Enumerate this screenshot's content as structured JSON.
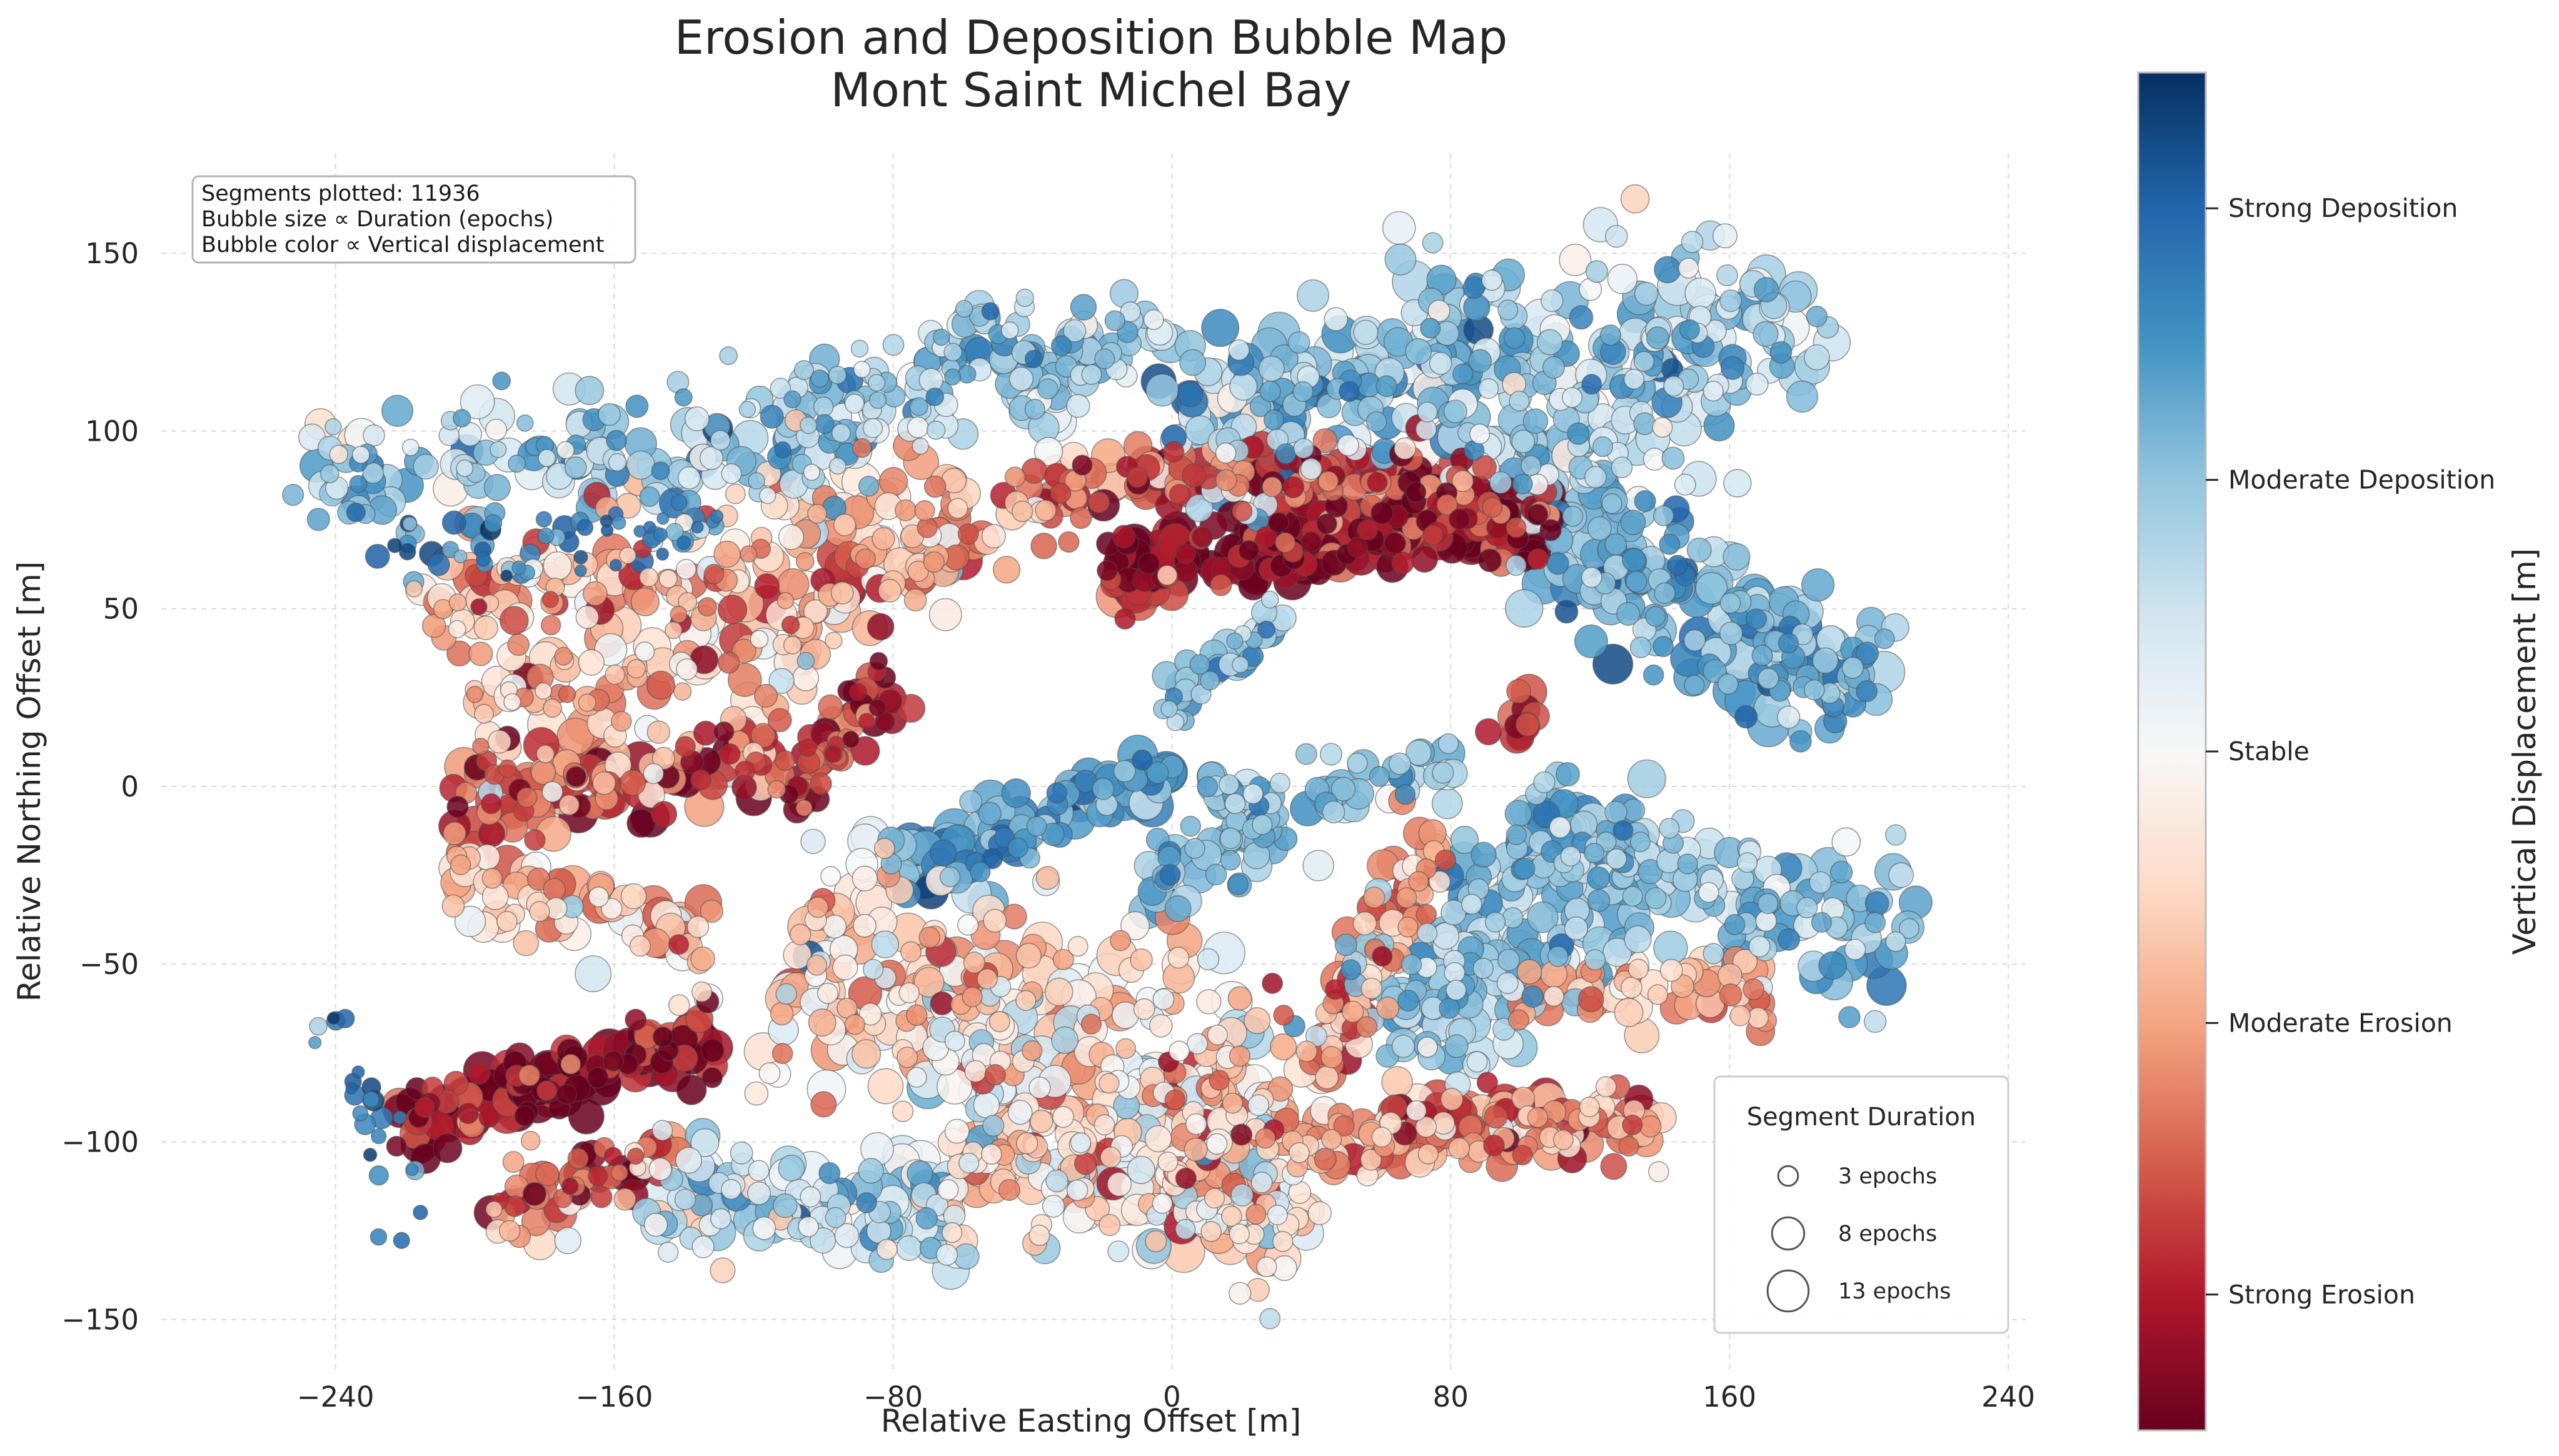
{
  "chart_data": {
    "type": "scatter",
    "title": [
      "Erosion and Deposition Bubble Map",
      "Mont Saint Michel Bay"
    ],
    "xlabel": "Relative Easting Offset [m]",
    "ylabel": "Relative Northing Offset [m]",
    "xlim": [
      -290,
      245
    ],
    "ylim": [
      -165,
      178
    ],
    "xticks": [
      -240,
      -160,
      -80,
      0,
      80,
      160,
      240
    ],
    "xtick_labels": [
      "−240",
      "−160",
      "−80",
      "0",
      "80",
      "160",
      "240"
    ],
    "yticks": [
      -150,
      -100,
      -50,
      0,
      50,
      100,
      150
    ],
    "ytick_labels": [
      "−150",
      "−100",
      "−50",
      "0",
      "50",
      "100",
      "150"
    ],
    "grid": true,
    "info_box": [
      "Segments plotted: 11936",
      "Bubble size ∝ Duration (epochs)",
      "Bubble color ∝ Vertical displacement"
    ],
    "legend": {
      "title": "Segment Duration",
      "placement": "lower-right",
      "items": [
        {
          "label": "3 epochs",
          "epochs": 3
        },
        {
          "label": "8 epochs",
          "epochs": 8
        },
        {
          "label": "13 epochs",
          "epochs": 13
        }
      ]
    },
    "colorbar": {
      "label": "Vertical Displacement [m]",
      "colormap": [
        "#67001f",
        "#b2182b",
        "#d6604d",
        "#f4a582",
        "#fddbc7",
        "#f7f7f7",
        "#d1e5f0",
        "#92c5de",
        "#4393c3",
        "#2166ac",
        "#053061"
      ],
      "ticks": [
        {
          "label": "Strong Deposition",
          "level": 0.9
        },
        {
          "label": "Moderate Deposition",
          "level": 0.7
        },
        {
          "label": "Stable",
          "level": 0.5
        },
        {
          "label": "Moderate Erosion",
          "level": 0.3
        },
        {
          "label": "Strong Erosion",
          "level": 0.1
        }
      ]
    },
    "clusters": [
      {
        "x0": -250,
        "y0": 90,
        "x1": -100,
        "y1": 95,
        "width": 18,
        "n": 140,
        "level": 0.67,
        "spread": 0.12,
        "epochs": [
          2,
          10
        ]
      },
      {
        "x0": -110,
        "y0": 98,
        "x1": -40,
        "y1": 125,
        "width": 16,
        "n": 120,
        "level": 0.68,
        "spread": 0.1,
        "epochs": [
          2,
          10
        ]
      },
      {
        "x0": -45,
        "y0": 108,
        "x1": -5,
        "y1": 135,
        "width": 12,
        "n": 60,
        "level": 0.66,
        "spread": 0.1,
        "epochs": [
          3,
          12
        ]
      },
      {
        "x0": -230,
        "y0": 65,
        "x1": -130,
        "y1": 72,
        "width": 8,
        "n": 60,
        "level": 0.85,
        "spread": 0.08,
        "epochs": [
          1,
          5
        ]
      },
      {
        "x0": -215,
        "y0": 50,
        "x1": -60,
        "y1": 80,
        "width": 20,
        "n": 150,
        "level": 0.34,
        "spread": 0.12,
        "epochs": [
          2,
          12
        ]
      },
      {
        "x0": -200,
        "y0": 20,
        "x1": -100,
        "y1": 45,
        "width": 18,
        "n": 110,
        "level": 0.32,
        "spread": 0.12,
        "epochs": [
          2,
          12
        ]
      },
      {
        "x0": -100,
        "y0": 55,
        "x1": -20,
        "y1": 85,
        "width": 12,
        "n": 90,
        "level": 0.28,
        "spread": 0.14,
        "epochs": [
          3,
          12
        ]
      },
      {
        "x0": -20,
        "y0": 60,
        "x1": 110,
        "y1": 78,
        "width": 10,
        "n": 260,
        "level": 0.06,
        "spread": 0.1,
        "epochs": [
          3,
          14
        ]
      },
      {
        "x0": -20,
        "y0": 85,
        "x1": 90,
        "y1": 88,
        "width": 8,
        "n": 120,
        "level": 0.2,
        "spread": 0.12,
        "epochs": [
          3,
          12
        ]
      },
      {
        "x0": 0,
        "y0": 95,
        "x1": 100,
        "y1": 130,
        "width": 25,
        "n": 190,
        "level": 0.7,
        "spread": 0.1,
        "epochs": [
          3,
          14
        ]
      },
      {
        "x0": 80,
        "y0": 90,
        "x1": 180,
        "y1": 140,
        "width": 30,
        "n": 220,
        "level": 0.67,
        "spread": 0.1,
        "epochs": [
          3,
          14
        ]
      },
      {
        "x0": 110,
        "y0": 70,
        "x1": 200,
        "y1": 25,
        "width": 22,
        "n": 200,
        "level": 0.75,
        "spread": 0.08,
        "epochs": [
          3,
          14
        ]
      },
      {
        "x0": -205,
        "y0": -5,
        "x1": -110,
        "y1": 10,
        "width": 10,
        "n": 120,
        "level": 0.2,
        "spread": 0.14,
        "epochs": [
          3,
          12
        ]
      },
      {
        "x0": -110,
        "y0": -5,
        "x1": -80,
        "y1": 30,
        "width": 8,
        "n": 60,
        "level": 0.1,
        "spread": 0.1,
        "epochs": [
          2,
          8
        ]
      },
      {
        "x0": -210,
        "y0": -25,
        "x1": -130,
        "y1": -45,
        "width": 14,
        "n": 80,
        "level": 0.33,
        "spread": 0.12,
        "epochs": [
          3,
          12
        ]
      },
      {
        "x0": -80,
        "y0": -25,
        "x1": 0,
        "y1": 5,
        "width": 8,
        "n": 100,
        "level": 0.78,
        "spread": 0.08,
        "epochs": [
          3,
          14
        ]
      },
      {
        "x0": 0,
        "y0": 20,
        "x1": 30,
        "y1": 50,
        "width": 5,
        "n": 40,
        "level": 0.72,
        "spread": 0.08,
        "epochs": [
          2,
          8
        ]
      },
      {
        "x0": -10,
        "y0": -30,
        "x1": 30,
        "y1": -10,
        "width": 10,
        "n": 50,
        "level": 0.73,
        "spread": 0.08,
        "epochs": [
          3,
          12
        ]
      },
      {
        "x0": 10,
        "y0": -5,
        "x1": 80,
        "y1": 5,
        "width": 10,
        "n": 60,
        "level": 0.7,
        "spread": 0.08,
        "epochs": [
          3,
          10
        ]
      },
      {
        "x0": 40,
        "y0": -80,
        "x1": 80,
        "y1": -10,
        "width": 8,
        "n": 90,
        "level": 0.28,
        "spread": 0.12,
        "epochs": [
          3,
          12
        ]
      },
      {
        "x0": 60,
        "y0": -70,
        "x1": 130,
        "y1": -20,
        "width": 25,
        "n": 200,
        "level": 0.69,
        "spread": 0.08,
        "epochs": [
          3,
          12
        ]
      },
      {
        "x0": 100,
        "y0": -10,
        "x1": 210,
        "y1": -45,
        "width": 18,
        "n": 160,
        "level": 0.7,
        "spread": 0.08,
        "epochs": [
          3,
          12
        ]
      },
      {
        "x0": 100,
        "y0": -60,
        "x1": 170,
        "y1": -55,
        "width": 10,
        "n": 60,
        "level": 0.33,
        "spread": 0.08,
        "epochs": [
          3,
          10
        ]
      },
      {
        "x0": -225,
        "y0": -95,
        "x1": -130,
        "y1": -70,
        "width": 10,
        "n": 140,
        "level": 0.04,
        "spread": 0.1,
        "epochs": [
          3,
          14
        ]
      },
      {
        "x0": -195,
        "y0": -120,
        "x1": -140,
        "y1": -105,
        "width": 10,
        "n": 60,
        "level": 0.22,
        "spread": 0.14,
        "epochs": [
          2,
          10
        ]
      },
      {
        "x0": -150,
        "y0": -115,
        "x1": -60,
        "y1": -120,
        "width": 14,
        "n": 150,
        "level": 0.62,
        "spread": 0.12,
        "epochs": [
          3,
          12
        ]
      },
      {
        "x0": -110,
        "y0": -50,
        "x1": 30,
        "y1": -90,
        "width": 35,
        "n": 380,
        "level": 0.41,
        "spread": 0.14,
        "epochs": [
          3,
          14
        ]
      },
      {
        "x0": -60,
        "y0": -100,
        "x1": 40,
        "y1": -125,
        "width": 18,
        "n": 200,
        "level": 0.43,
        "spread": 0.12,
        "epochs": [
          3,
          14
        ]
      },
      {
        "x0": 30,
        "y0": -100,
        "x1": 140,
        "y1": -95,
        "width": 10,
        "n": 160,
        "level": 0.3,
        "spread": 0.12,
        "epochs": [
          3,
          12
        ]
      },
      {
        "x0": 60,
        "y0": -95,
        "x1": 120,
        "y1": -92,
        "width": 4,
        "n": 40,
        "level": 0.15,
        "spread": 0.08,
        "epochs": [
          4,
          12
        ]
      },
      {
        "x0": -240,
        "y0": -60,
        "x1": -220,
        "y1": -130,
        "width": 8,
        "n": 25,
        "level": 0.85,
        "spread": 0.08,
        "epochs": [
          1,
          4
        ]
      },
      {
        "x0": 90,
        "y0": 10,
        "x1": 105,
        "y1": 25,
        "width": 4,
        "n": 12,
        "level": 0.15,
        "spread": 0.06,
        "epochs": [
          4,
          10
        ]
      }
    ]
  }
}
